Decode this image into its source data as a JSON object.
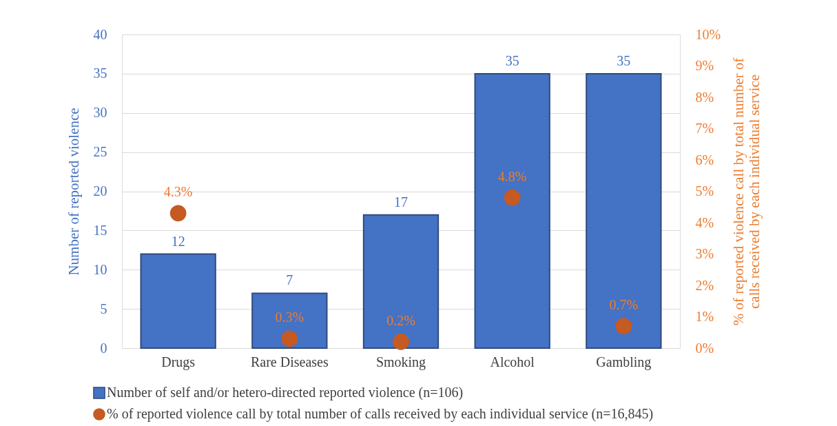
{
  "chart_data": {
    "type": "bar",
    "categories": [
      "Drugs",
      "Rare Diseases",
      "Smoking",
      "Alcohol",
      "Gambling"
    ],
    "ylabel": "Number of reported violence",
    "y2label": "% of reported violence call by total number of\ncalls received by each individual service",
    "ylim": [
      0,
      40
    ],
    "yticks": [
      0,
      5,
      10,
      15,
      20,
      25,
      30,
      35,
      40
    ],
    "y2lim": [
      0,
      10
    ],
    "y2ticks": [
      {
        "value": 0,
        "label": "0%"
      },
      {
        "value": 1,
        "label": "1%"
      },
      {
        "value": 2,
        "label": "2%"
      },
      {
        "value": 3,
        "label": "3%"
      },
      {
        "value": 4,
        "label": "4%"
      },
      {
        "value": 5,
        "label": "5%"
      },
      {
        "value": 6,
        "label": "6%"
      },
      {
        "value": 7,
        "label": "7%"
      },
      {
        "value": 8,
        "label": "8%"
      },
      {
        "value": 9,
        "label": "9%"
      },
      {
        "value": 10,
        "label": "10%"
      }
    ],
    "grid": "y",
    "legend": "bottom",
    "data_labels": true,
    "series": [
      {
        "name": "Number of self and/or hetero-directed reported violence  (n=106)",
        "color": "#4472c4",
        "values": [
          12,
          7,
          17,
          35,
          35
        ]
      },
      {
        "name": "% of reported violence call by total number of calls received by each individual service (n=16,845)",
        "type": "scatter",
        "axis": "y2",
        "marker": "circle",
        "color": "#c55a22",
        "values": [
          4.3,
          0.3,
          0.2,
          4.8,
          0.7
        ],
        "value_labels": [
          "4.3%",
          "0.3%",
          "0.2%",
          "4.8%",
          "0.7%"
        ]
      }
    ]
  }
}
